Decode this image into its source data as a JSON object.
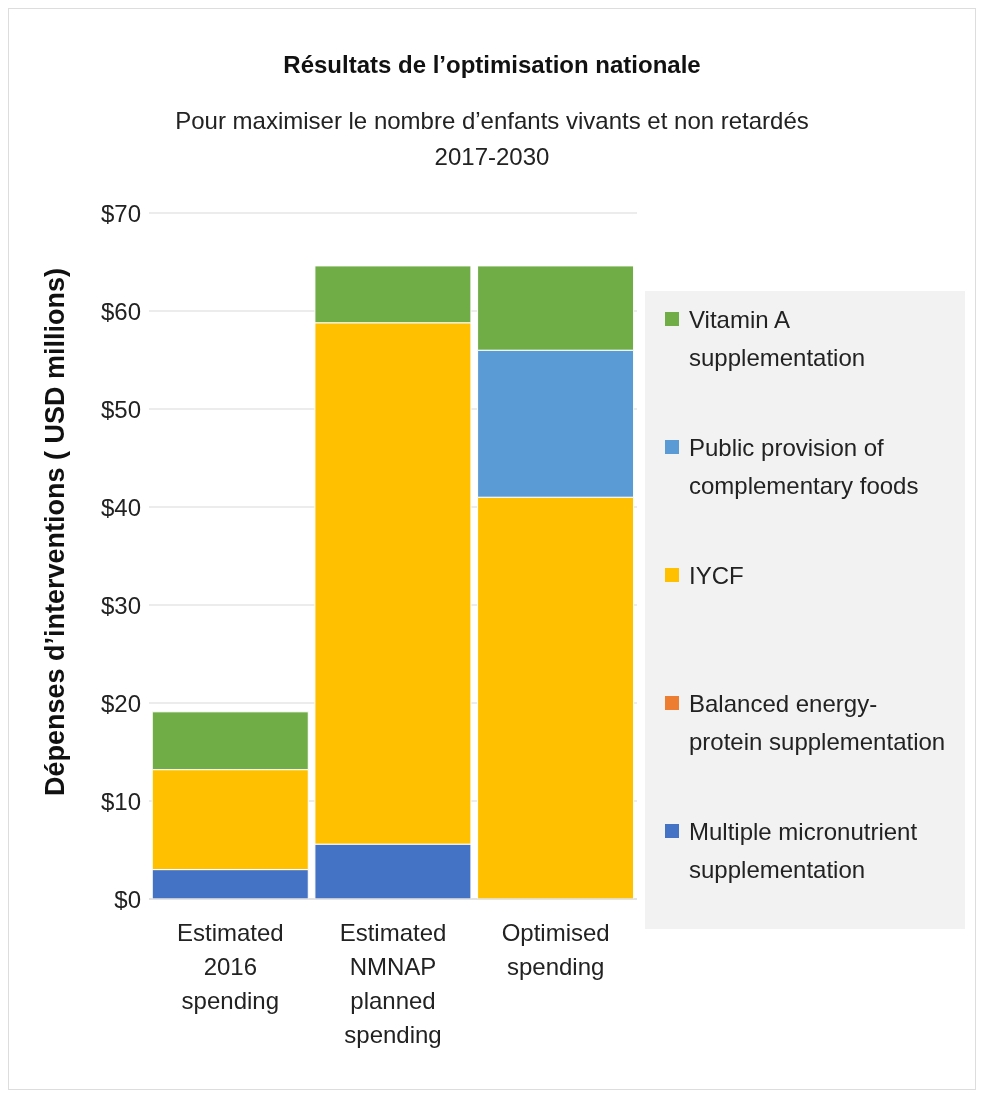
{
  "chart_data": {
    "type": "bar",
    "title": "Résultats de l’optimisation nationale",
    "subtitle": "Pour maximiser le nombre d’enfants vivants et non retardés 2017-2030",
    "ylabel": "Dépenses d’interventions ( USD millions)",
    "categories": [
      "Estimated 2016 spending",
      "Estimated NMNAP planned spending",
      "Optimised spending"
    ],
    "stacked": true,
    "series": [
      {
        "name": "Multiple micronutrient supplementation",
        "color": "#4472c4",
        "values": [
          3.0,
          5.6,
          0
        ]
      },
      {
        "name": "Balanced energy-protein supplementation",
        "color": "#ed7d31",
        "values": [
          0,
          0,
          0
        ]
      },
      {
        "name": "IYCF",
        "color": "#ffc000",
        "values": [
          10.2,
          53.2,
          41.0
        ]
      },
      {
        "name": "Public provision of complementary foods",
        "color": "#5b9bd5",
        "values": [
          0,
          0,
          15.0
        ]
      },
      {
        "name": "Vitamin A supplementation",
        "color": "#70ad47",
        "values": [
          5.9,
          5.8,
          8.6
        ]
      }
    ],
    "ylim": [
      0,
      70
    ],
    "yticks": [
      {
        "value": 0,
        "label": "$0"
      },
      {
        "value": 10,
        "label": "$10"
      },
      {
        "value": 20,
        "label": "$20"
      },
      {
        "value": 30,
        "label": "$30"
      },
      {
        "value": 40,
        "label": "$40"
      },
      {
        "value": 50,
        "label": "$50"
      },
      {
        "value": 60,
        "label": "$60"
      },
      {
        "value": 70,
        "label": "$70"
      }
    ],
    "grid": "y",
    "legend": "right"
  }
}
